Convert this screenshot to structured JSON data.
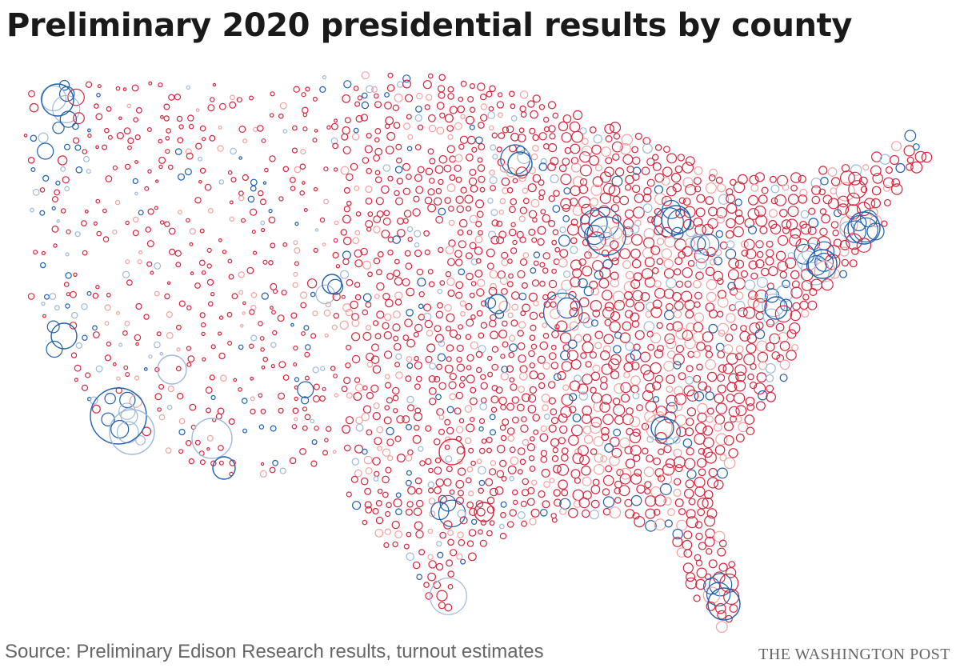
{
  "title": "Preliminary 2020 presidential results by county",
  "source": "Source: Preliminary Edison Research results, turnout estimates",
  "credit": "THE WASHINGTON POST",
  "colors": {
    "dem_strong": "#1f5fae",
    "dem_light": "#9db9dc",
    "rep_strong": "#d7263d",
    "rep_light": "#f2a3a0",
    "background": "#ffffff",
    "title": "#1a1a1a",
    "footer": "#666666"
  }
}
